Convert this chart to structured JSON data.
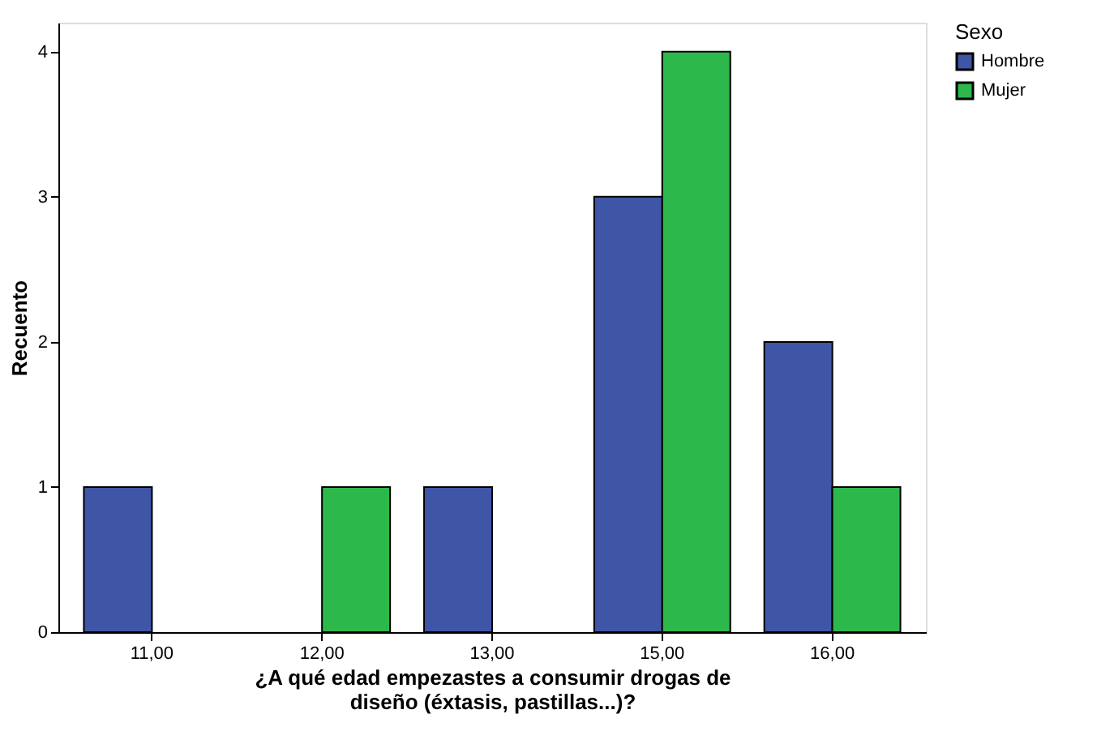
{
  "chart_data": {
    "type": "bar",
    "xlabel": "¿A qué edad empezastes a consumir drogas de diseño (éxtasis, pastillas...)?",
    "ylabel": "Recuento",
    "legend_title": "Sexo",
    "categories": [
      "11,00",
      "12,00",
      "13,00",
      "15,00",
      "16,00"
    ],
    "series": [
      {
        "name": "Hombre",
        "color": "#3f55a6",
        "values": [
          1,
          null,
          1,
          3,
          2
        ]
      },
      {
        "name": "Mujer",
        "color": "#2db84b",
        "values": [
          null,
          1,
          null,
          4,
          1
        ]
      }
    ],
    "ylim": [
      0,
      4.2
    ],
    "yticks": [
      0,
      1,
      2,
      3,
      4
    ],
    "grid": false,
    "legend": "top right"
  }
}
